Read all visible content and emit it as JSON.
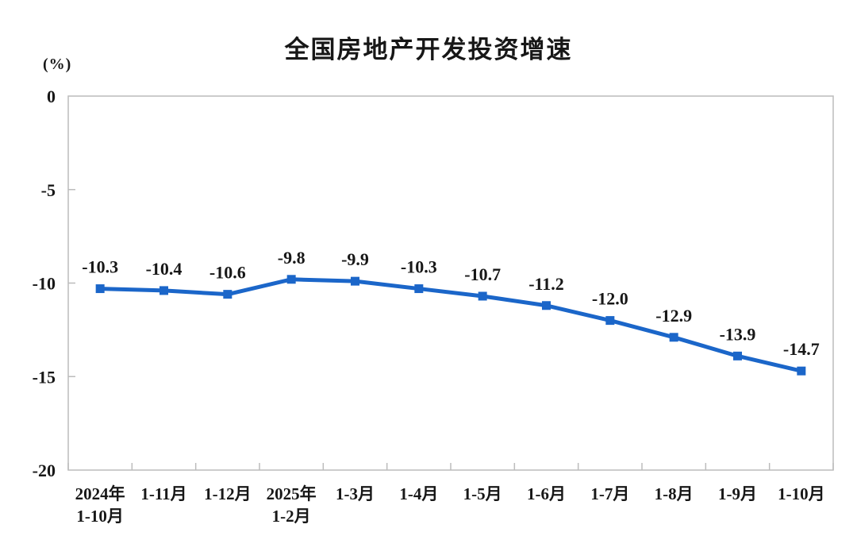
{
  "title": "全国房地产开发投资增速",
  "unit_label": "(%)",
  "chart_data": {
    "type": "line",
    "title": "全国房地产开发投资增速",
    "ylabel": "(%)",
    "xlabel": "",
    "categories": [
      [
        "2024年",
        "1-10月"
      ],
      [
        "1-11月"
      ],
      [
        "1-12月"
      ],
      [
        "2025年",
        "1-2月"
      ],
      [
        "1-3月"
      ],
      [
        "1-4月"
      ],
      [
        "1-5月"
      ],
      [
        "1-6月"
      ],
      [
        "1-7月"
      ],
      [
        "1-8月"
      ],
      [
        "1-9月"
      ],
      [
        "1-10月"
      ]
    ],
    "series": [
      {
        "name": "全国房地产开发投资增速",
        "values": [
          -10.3,
          -10.4,
          -10.6,
          -9.8,
          -9.9,
          -10.3,
          -10.7,
          -11.2,
          -12.0,
          -12.9,
          -13.9,
          -14.7
        ],
        "labels": [
          "-10.3",
          "-10.4",
          "-10.6",
          "-9.8",
          "-9.9",
          "-10.3",
          "-10.7",
          "-11.2",
          "-12.0",
          "-12.9",
          "-13.9",
          "-14.7"
        ]
      }
    ],
    "ylim": [
      -20,
      0
    ],
    "yticks": [
      0,
      -5,
      -10,
      -15,
      -20
    ],
    "grid": false,
    "legend_position": "none",
    "line_color": "#1b66c9",
    "marker": "square",
    "axis_color": "#bcbcbc",
    "text_color": "#171717"
  }
}
